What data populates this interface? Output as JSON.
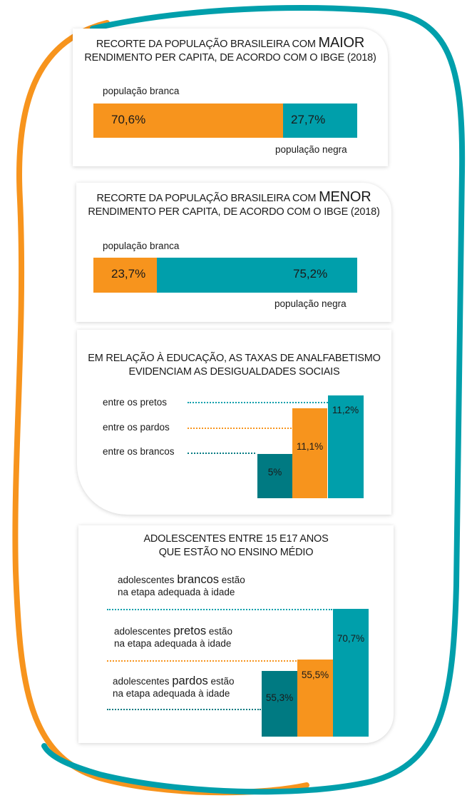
{
  "colors": {
    "orange": "#F7941D",
    "teal": "#009FAB",
    "dark_teal": "#007A82",
    "text": "#1A1A1A"
  },
  "card1": {
    "title_pre": "RECORTE DA POPULAÇÃO BRASILEIRA COM ",
    "title_emph": "MAIOR",
    "title_line2": "RENDIMENTO PER CAPITA, DE ACORDO COM O IBGE (2018)",
    "label_top": "população branca",
    "label_bottom": "população negra",
    "value_white": "70,6%",
    "value_black": "27,7%"
  },
  "card2": {
    "title_pre": "RECORTE DA POPULAÇÃO BRASILEIRA COM ",
    "title_emph": "MENOR",
    "title_line2": "RENDIMENTO PER CAPITA, DE ACORDO COM O IBGE (2018)",
    "label_top": "população branca",
    "label_bottom": "população negra",
    "value_white": "23,7%",
    "value_black": "75,2%"
  },
  "card3": {
    "title_line1": "EM RELAÇÃO À EDUCAÇÃO, AS TAXAS DE ANALFABETISMO",
    "title_line2": "EVIDENCIAM AS DESIGUALDADES SOCIAIS",
    "label_pretos": "entre os pretos",
    "label_pardos": "entre os pardos",
    "label_brancos": "entre os brancos",
    "value_brancos": "5%",
    "value_pardos": "11,1%",
    "value_pretos": "11,2%"
  },
  "card4": {
    "title_line1": "ADOLESCENTES ENTRE 15 E17 ANOS",
    "title_line2": "QUE ESTÃO NO ENSINO MÉDIO",
    "brancos_pre": "adolescentes ",
    "brancos_emph": "brancos",
    "brancos_post": " estão",
    "brancos_line2": "na etapa adequada à idade",
    "pretos_pre": "adolescentes ",
    "pretos_emph": "pretos",
    "pretos_post": " estão",
    "pretos_line2": "na etapa adequada à idade",
    "pardos_pre": "adolescentes ",
    "pardos_emph": "pardos",
    "pardos_post": " estão",
    "pardos_line2": "na etapa adequada à idade",
    "value_pardos": "55,3%",
    "value_pretos": "55,5%",
    "value_brancos": "70,7%"
  },
  "chart_data": [
    {
      "type": "bar",
      "orientation": "horizontal-stacked",
      "title": "RECORTE DA POPULAÇÃO BRASILEIRA COM MAIOR RENDIMENTO PER CAPITA, DE ACORDO COM O IBGE (2018)",
      "series": [
        {
          "name": "população branca",
          "values": [
            70.6
          ]
        },
        {
          "name": "população negra",
          "values": [
            27.7
          ]
        }
      ]
    },
    {
      "type": "bar",
      "orientation": "horizontal-stacked",
      "title": "RECORTE DA POPULAÇÃO BRASILEIRA COM MENOR RENDIMENTO PER CAPITA, DE ACORDO COM O IBGE (2018)",
      "series": [
        {
          "name": "população branca",
          "values": [
            23.7
          ]
        },
        {
          "name": "população negra",
          "values": [
            75.2
          ]
        }
      ]
    },
    {
      "type": "bar",
      "title": "EM RELAÇÃO À EDUCAÇÃO, AS TAXAS DE ANALFABETISMO EVIDENCIAM AS DESIGUALDADES SOCIAIS",
      "categories": [
        "entre os brancos",
        "entre os pardos",
        "entre os pretos"
      ],
      "values": [
        5,
        11.1,
        11.2
      ]
    },
    {
      "type": "bar",
      "title": "ADOLESCENTES ENTRE 15 E17 ANOS QUE ESTÃO NO ENSINO MÉDIO",
      "categories": [
        "adolescentes pardos estão na etapa adequada à idade",
        "adolescentes pretos estão na etapa adequada à idade",
        "adolescentes brancos estão na etapa adequada à idade"
      ],
      "values": [
        55.3,
        55.5,
        70.7
      ]
    }
  ]
}
